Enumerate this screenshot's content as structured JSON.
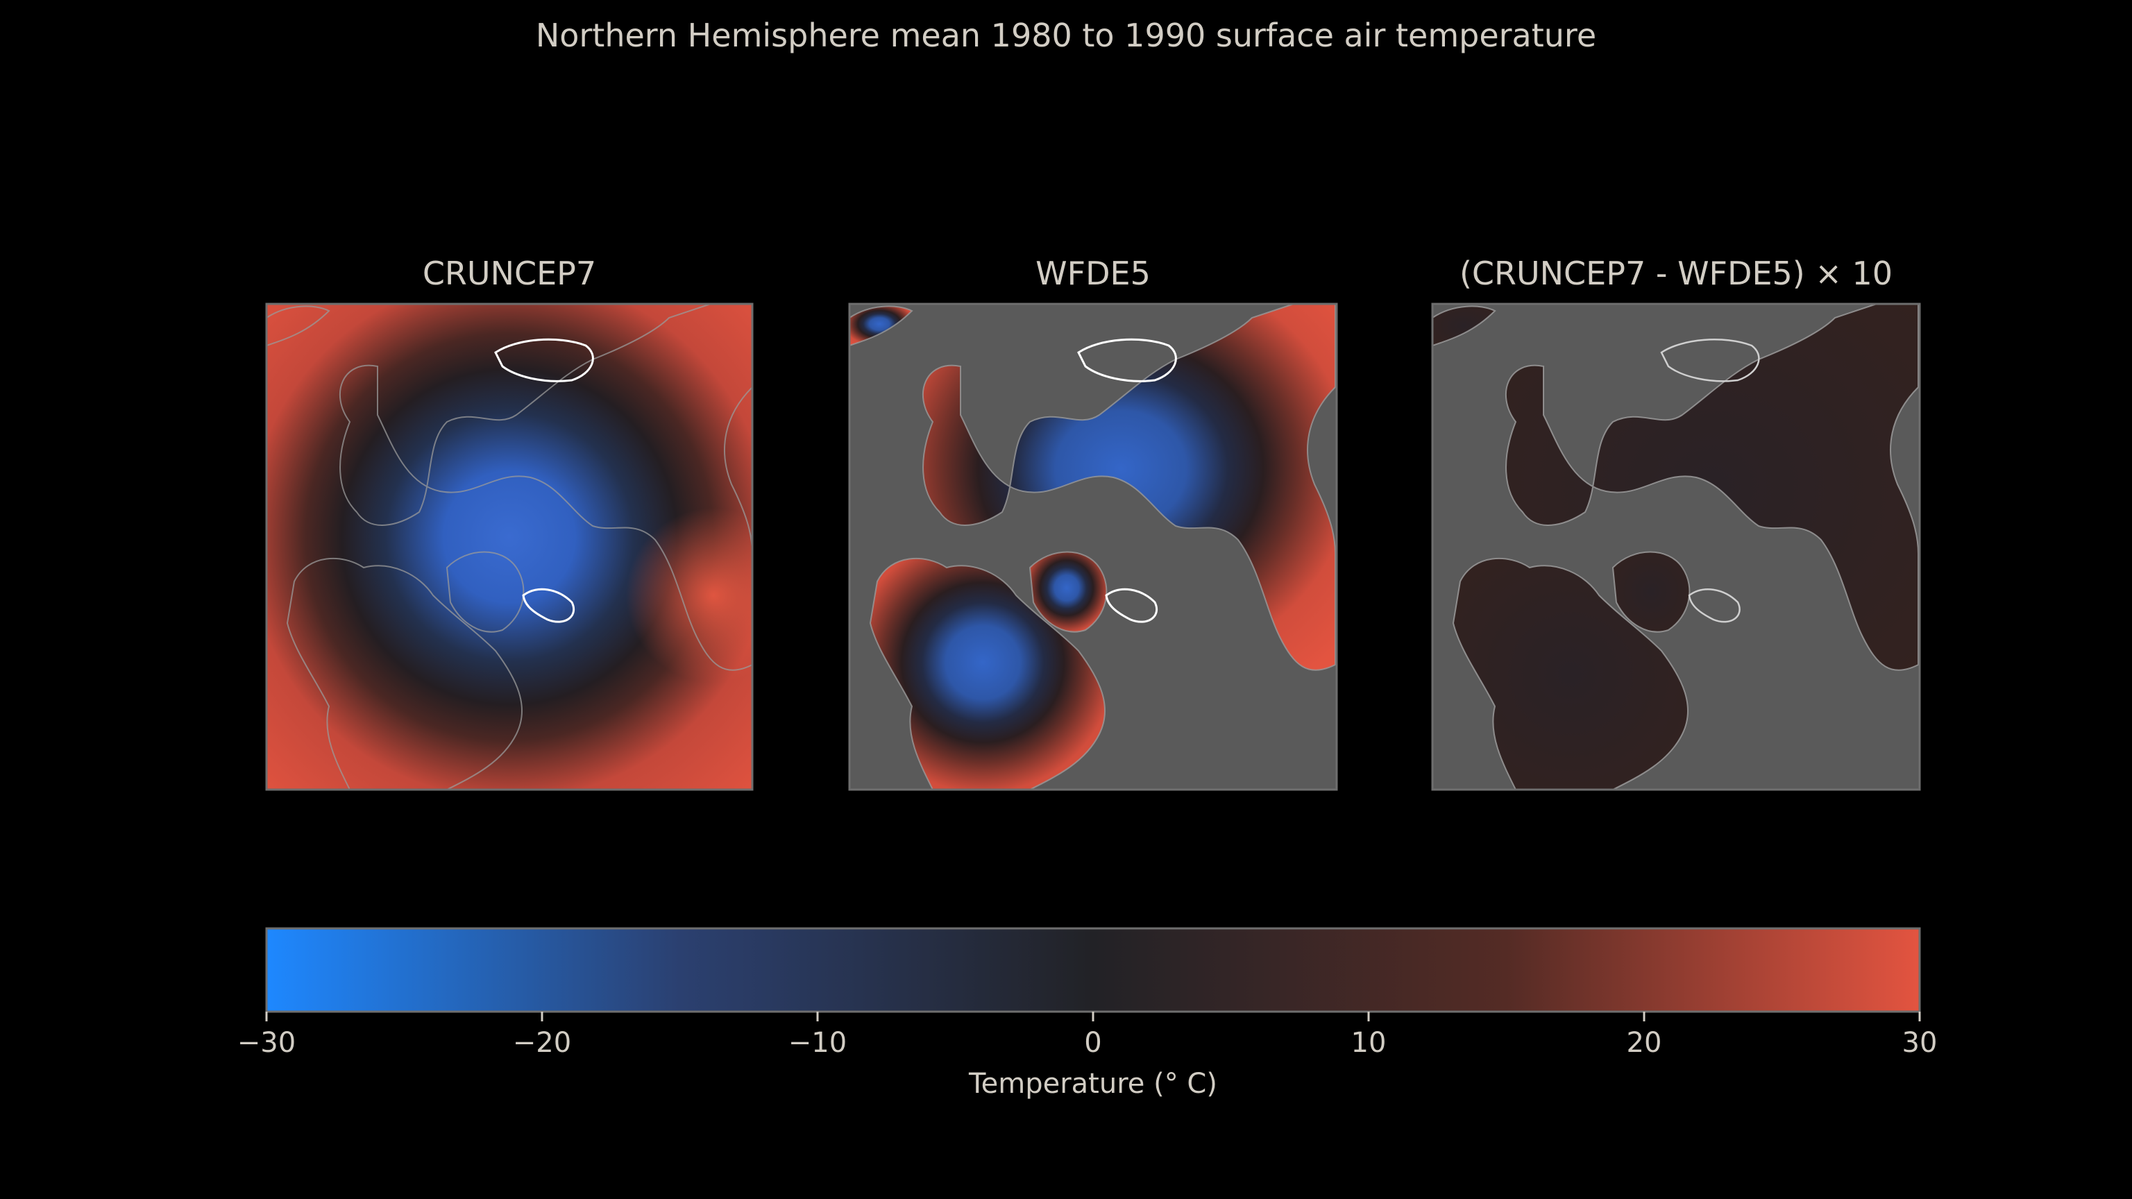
{
  "chart_data": {
    "type": "heatmap",
    "title": "Northern Hemisphere mean 1980 to 1990 surface air temperature",
    "panels": [
      {
        "title": "CRUNCEP7",
        "projection": "north-polar"
      },
      {
        "title": "WFDE5",
        "projection": "north-polar"
      },
      {
        "title": "(CRUNCEP7 - WFDE5) × 10",
        "projection": "north-polar"
      }
    ],
    "colorbar": {
      "label": "Temperature (° C)",
      "range": [
        -30,
        30
      ],
      "ticks": [
        -30,
        -20,
        -10,
        0,
        10,
        20,
        30
      ],
      "tick_labels": [
        "−30",
        "−20",
        "−10",
        "0",
        "10",
        "20",
        "30"
      ],
      "colors": [
        "#1e88ff",
        "#2b4070",
        "#222226",
        "#542b25",
        "#e35440"
      ]
    },
    "background": "#000000",
    "missing_color": "#5a5a5a"
  }
}
